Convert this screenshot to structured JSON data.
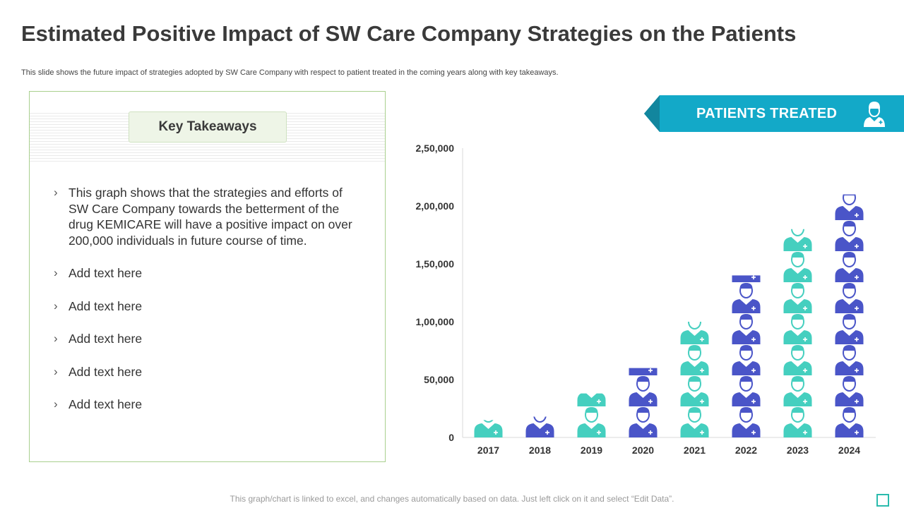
{
  "slide": {
    "title": "Estimated Positive Impact of SW Care Company Strategies on the Patients",
    "subtitle": "This slide shows the future impact of strategies adopted by SW Care Company with respect to patient treated in the coming years along with key takeaways.",
    "footer_note": "This graph/chart is linked to excel, and changes automatically based on data. Just left click on it and select “Edit Data”."
  },
  "takeaways": {
    "header": "Key Takeaways",
    "bullet_glyph": "›",
    "items": [
      "This graph shows that the strategies and efforts of SW Care Company towards the betterment of the drug KEMICARE will have a positive impact on over 200,000 individuals in future course of time.",
      "Add text here",
      "Add text here",
      "Add text here",
      "Add text here",
      "Add text here"
    ]
  },
  "badge": {
    "label": "PATIENTS TREATED",
    "icon": "doctor-icon"
  },
  "colors": {
    "teal": "#45cfbf",
    "blue": "#4a55c8",
    "badge_bg": "#13a9c8",
    "badge_tip": "#12869e",
    "panel_border": "#a9d08e",
    "axis": "#d9d9d9",
    "text": "#3a3a3a"
  },
  "chart_data": {
    "type": "bar",
    "style": "pictograph",
    "icon": "patient-icon",
    "title": "PATIENTS TREATED",
    "xlabel": "",
    "ylabel": "",
    "categories": [
      "2017",
      "2018",
      "2019",
      "2020",
      "2021",
      "2022",
      "2023",
      "2024"
    ],
    "values": [
      15000,
      18000,
      38000,
      60000,
      100000,
      140000,
      180000,
      210000
    ],
    "bar_colors": [
      "teal",
      "blue",
      "teal",
      "blue",
      "teal",
      "blue",
      "teal",
      "blue"
    ],
    "ylim": [
      0,
      250000
    ],
    "yticks": [
      0,
      50000,
      100000,
      150000,
      200000,
      250000
    ],
    "ytick_labels": [
      "0",
      "50,000",
      "1,00,000",
      "1,50,000",
      "2,00,000",
      "2,50,000"
    ],
    "grid": false,
    "legend": "none"
  }
}
